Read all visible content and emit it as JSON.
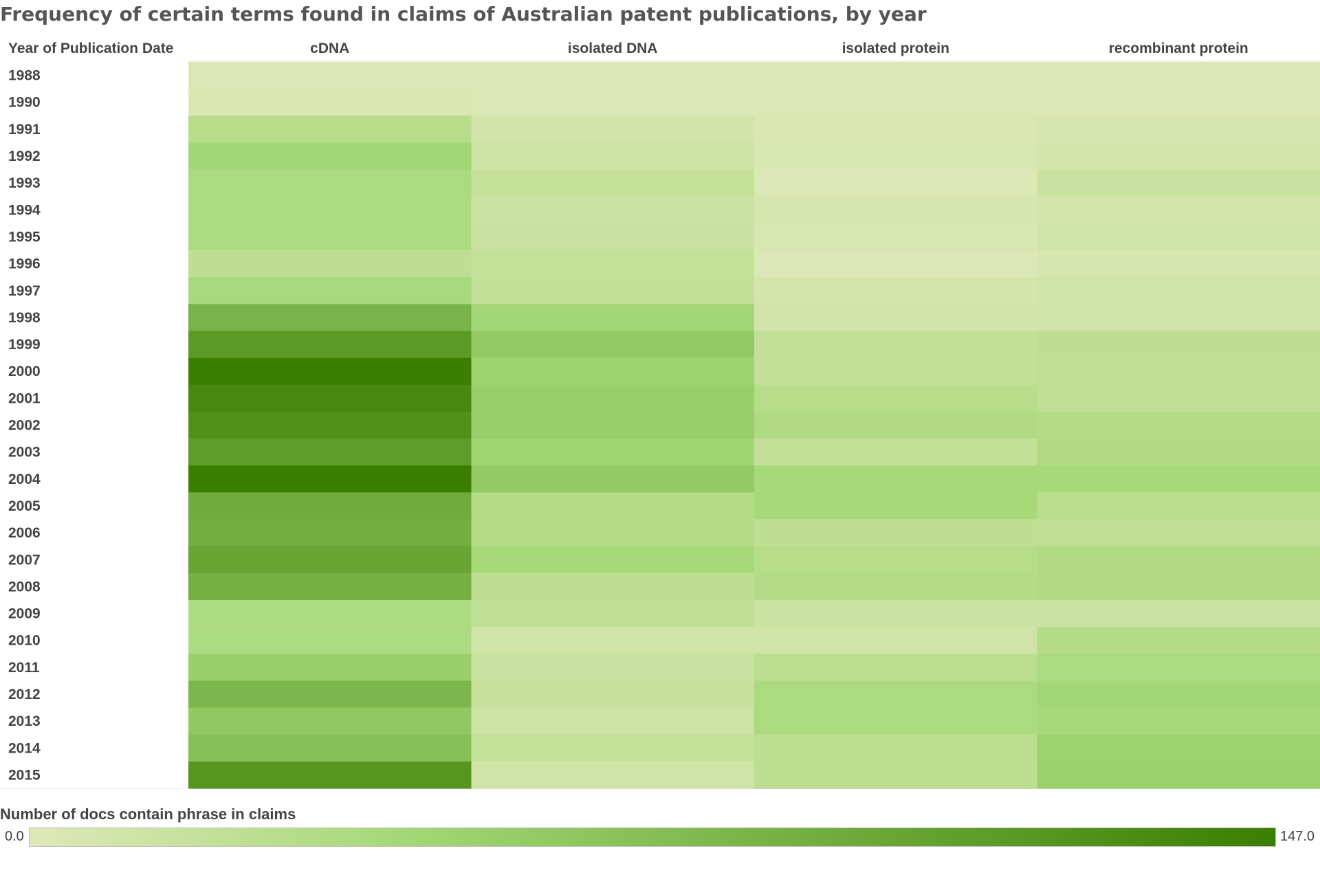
{
  "chart_data": {
    "type": "heatmap",
    "title": "Frequency of certain terms found in claims of Australian patent publications, by year",
    "row_header": "Year of Publication Date",
    "columns": [
      "cDNA",
      "isolated DNA",
      "isolated protein",
      "recombinant protein"
    ],
    "rows": [
      "1988",
      "1990",
      "1991",
      "1992",
      "1993",
      "1994",
      "1995",
      "1996",
      "1997",
      "1998",
      "1999",
      "2000",
      "2001",
      "2002",
      "2003",
      "2004",
      "2005",
      "2006",
      "2007",
      "2008",
      "2009",
      "2010",
      "2011",
      "2012",
      "2013",
      "2014",
      "2015"
    ],
    "values": [
      [
        2,
        2,
        2,
        2
      ],
      [
        4,
        3,
        3,
        3
      ],
      [
        30,
        10,
        4,
        6
      ],
      [
        45,
        14,
        5,
        9
      ],
      [
        38,
        20,
        3,
        16
      ],
      [
        38,
        15,
        6,
        8
      ],
      [
        38,
        16,
        5,
        12
      ],
      [
        25,
        20,
        3,
        6
      ],
      [
        40,
        22,
        8,
        11
      ],
      [
        85,
        45,
        10,
        12
      ],
      [
        115,
        60,
        22,
        25
      ],
      [
        147,
        50,
        22,
        24
      ],
      [
        135,
        55,
        30,
        24
      ],
      [
        125,
        55,
        35,
        32
      ],
      [
        112,
        48,
        22,
        35
      ],
      [
        147,
        60,
        42,
        42
      ],
      [
        95,
        33,
        42,
        28
      ],
      [
        92,
        34,
        25,
        24
      ],
      [
        102,
        42,
        30,
        35
      ],
      [
        90,
        25,
        32,
        35
      ],
      [
        37,
        24,
        15,
        15
      ],
      [
        37,
        12,
        12,
        32
      ],
      [
        55,
        17,
        27,
        38
      ],
      [
        82,
        18,
        38,
        45
      ],
      [
        62,
        14,
        38,
        42
      ],
      [
        72,
        20,
        27,
        50
      ],
      [
        120,
        12,
        27,
        52
      ]
    ],
    "legend": {
      "title": "Number of docs contain phrase in claims",
      "min_label": "0.0",
      "max_label": "147.0",
      "min": 0,
      "max": 147,
      "color_low": "#dfe8b8",
      "color_mid": "#a4d876",
      "color_high": "#3a7e02"
    },
    "grid": false
  }
}
